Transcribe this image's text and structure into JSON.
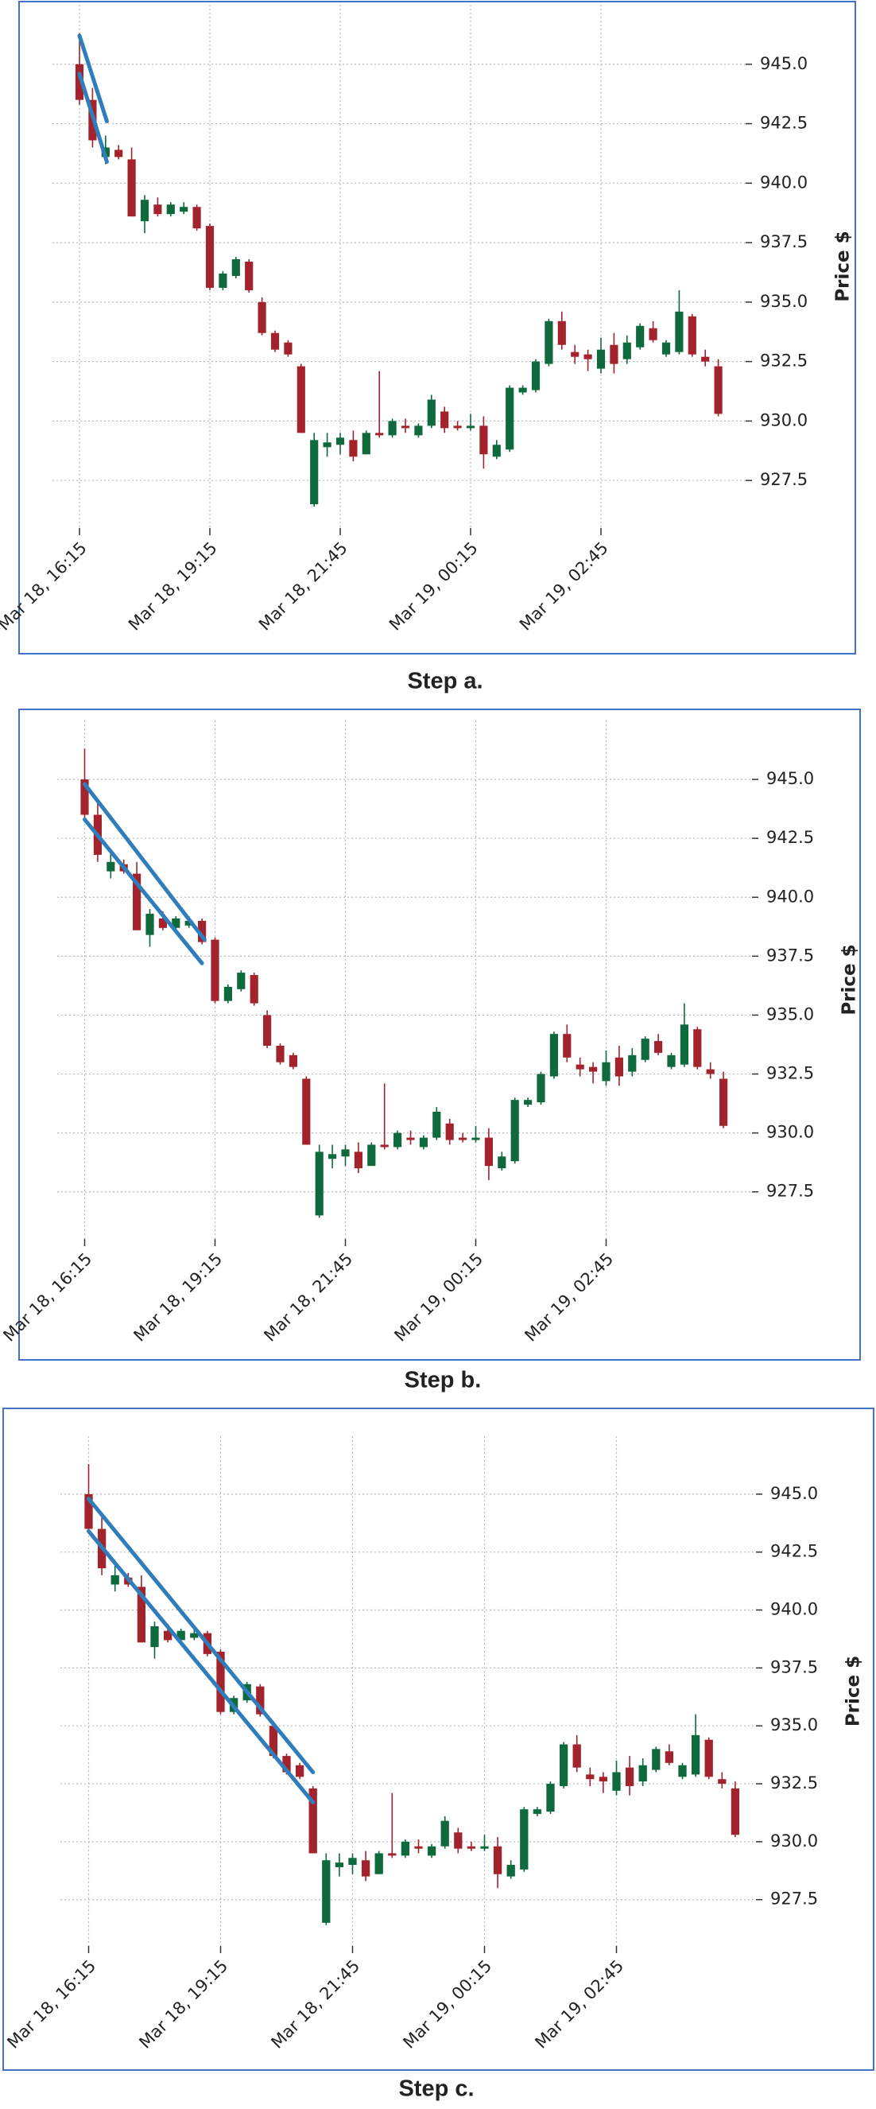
{
  "chart_data": [
    {
      "type": "candlestick",
      "caption": "Step a.",
      "y_label": "Price $",
      "categories": [
        "Mar 18, 16:15",
        null,
        null,
        null,
        null,
        null,
        null,
        null,
        null,
        null,
        "Mar 18, 19:15",
        null,
        null,
        null,
        null,
        null,
        null,
        null,
        null,
        null,
        "Mar 18, 21:45",
        null,
        null,
        null,
        null,
        null,
        null,
        null,
        null,
        null,
        "Mar 19, 00:15",
        null,
        null,
        null,
        null,
        null,
        null,
        null,
        null,
        null,
        "Mar 19, 02:45",
        null,
        null,
        null,
        null,
        null,
        null,
        null,
        null,
        null
      ],
      "open": [
        945,
        943.5,
        941.1,
        941.4,
        941,
        938.4,
        939.1,
        938.7,
        938.8,
        939,
        938.2,
        935.6,
        936.1,
        936.7,
        935,
        933.7,
        933.3,
        932.3,
        926.5,
        928.9,
        929.0,
        929.2,
        928.6,
        929.5,
        929.4,
        929.8,
        929.4,
        929.8,
        930.4,
        929.8,
        929.7,
        929.8,
        928.5,
        928.8,
        931.2,
        931.3,
        932.4,
        934.2,
        932.9,
        932.8,
        932.2,
        933.2,
        932.6,
        933.1,
        933.9,
        932.8,
        932.9,
        934.4,
        932.7,
        932.3
      ],
      "high": [
        946.3,
        944,
        942,
        941.6,
        941.5,
        939.5,
        939.4,
        939.2,
        939.2,
        939.1,
        938.3,
        936.3,
        936.9,
        936.8,
        935.2,
        933.8,
        933.4,
        932.4,
        929.5,
        929.5,
        929.5,
        929.6,
        929.6,
        932.1,
        930.1,
        930.1,
        929.9,
        931.1,
        930.6,
        930.0,
        930.3,
        930.2,
        929.2,
        931.5,
        931.5,
        932.6,
        934.3,
        934.6,
        933.2,
        933.0,
        933.5,
        933.7,
        933.6,
        934.1,
        934.2,
        933.4,
        935.5,
        934.5,
        933.0,
        932.6
      ],
      "low": [
        943.3,
        941.5,
        940.8,
        941.0,
        938.6,
        937.9,
        938.6,
        938.6,
        938.7,
        938.0,
        935.5,
        935.5,
        936.0,
        935.4,
        933.6,
        932.9,
        932.7,
        929.5,
        926.4,
        928.5,
        928.6,
        928.3,
        928.6,
        929.3,
        929.3,
        929.5,
        929.3,
        929.7,
        929.5,
        929.6,
        929.6,
        928.0,
        928.4,
        928.7,
        931.1,
        931.2,
        932.3,
        933.0,
        932.4,
        932.1,
        932.0,
        932.0,
        932.4,
        933.0,
        933.3,
        932.7,
        932.8,
        932.7,
        932.3,
        930.2
      ],
      "close": [
        943.5,
        941.8,
        941.5,
        941.1,
        938.6,
        939.3,
        938.7,
        939.1,
        939.0,
        938.1,
        935.6,
        936.2,
        936.8,
        935.5,
        933.7,
        933.0,
        932.8,
        929.5,
        929.2,
        929.1,
        929.3,
        928.5,
        929.5,
        929.4,
        930.0,
        929.7,
        929.8,
        930.9,
        929.7,
        929.7,
        929.8,
        928.6,
        929.0,
        931.4,
        931.4,
        932.5,
        934.2,
        933.2,
        932.7,
        932.6,
        933.0,
        932.4,
        933.3,
        934.0,
        933.4,
        933.3,
        934.6,
        932.8,
        932.5,
        930.3
      ],
      "colors": {
        "up": "#0e6a3d",
        "down": "#a2232c"
      },
      "trend_line_color": "#2f7dbb",
      "trend_lines": [
        {
          "start": [
            0,
            946.2
          ],
          "end": [
            2.1,
            942.6
          ]
        },
        {
          "start": [
            0,
            944.6
          ],
          "end": [
            2.1,
            940.9
          ]
        }
      ],
      "ylim": [
        925.5,
        947.5
      ],
      "yticks": [
        927.5,
        {
          "value": 930,
          "label": "930.0"
        },
        932.5,
        {
          "value": 935,
          "label": "935.0"
        },
        937.5,
        {
          "value": 940,
          "label": "940.0"
        },
        942.5,
        {
          "value": 945,
          "label": "945.0"
        }
      ],
      "grid": true
    },
    {
      "type": "candlestick",
      "caption": "Step b.",
      "y_label": "Price $",
      "categories": [
        "Mar 18, 16:15",
        null,
        null,
        null,
        null,
        null,
        null,
        null,
        null,
        null,
        "Mar 18, 19:15",
        null,
        null,
        null,
        null,
        null,
        null,
        null,
        null,
        null,
        "Mar 18, 21:45",
        null,
        null,
        null,
        null,
        null,
        null,
        null,
        null,
        null,
        "Mar 19, 00:15",
        null,
        null,
        null,
        null,
        null,
        null,
        null,
        null,
        null,
        "Mar 19, 02:45",
        null,
        null,
        null,
        null,
        null,
        null,
        null,
        null,
        null
      ],
      "open": [
        945,
        943.5,
        941.1,
        941.4,
        941,
        938.4,
        939.1,
        938.7,
        938.8,
        939,
        938.2,
        935.6,
        936.1,
        936.7,
        935,
        933.7,
        933.3,
        932.3,
        926.5,
        928.9,
        929.0,
        929.2,
        928.6,
        929.5,
        929.4,
        929.8,
        929.4,
        929.8,
        930.4,
        929.8,
        929.7,
        929.8,
        928.5,
        928.8,
        931.2,
        931.3,
        932.4,
        934.2,
        932.9,
        932.8,
        932.2,
        933.2,
        932.6,
        933.1,
        933.9,
        932.8,
        932.9,
        934.4,
        932.7,
        932.3
      ],
      "high": [
        946.3,
        944,
        942,
        941.6,
        941.5,
        939.5,
        939.4,
        939.2,
        939.2,
        939.1,
        938.3,
        936.3,
        936.9,
        936.8,
        935.2,
        933.8,
        933.4,
        932.4,
        929.5,
        929.5,
        929.5,
        929.6,
        929.6,
        932.1,
        930.1,
        930.1,
        929.9,
        931.1,
        930.6,
        930.0,
        930.3,
        930.2,
        929.2,
        931.5,
        931.5,
        932.6,
        934.3,
        934.6,
        933.2,
        933.0,
        933.5,
        933.7,
        933.6,
        934.1,
        934.2,
        933.4,
        935.5,
        934.5,
        933.0,
        932.6
      ],
      "low": [
        943.3,
        941.5,
        940.8,
        941.0,
        938.6,
        937.9,
        938.6,
        938.6,
        938.7,
        938.0,
        935.5,
        935.5,
        936.0,
        935.4,
        933.6,
        932.9,
        932.7,
        929.5,
        926.4,
        928.5,
        928.6,
        928.3,
        928.6,
        929.3,
        929.3,
        929.5,
        929.3,
        929.7,
        929.5,
        929.6,
        929.6,
        928.0,
        928.4,
        928.7,
        931.1,
        931.2,
        932.3,
        933.0,
        932.4,
        932.1,
        932.0,
        932.0,
        932.4,
        933.0,
        933.3,
        932.7,
        932.8,
        932.7,
        932.3,
        930.2
      ],
      "close": [
        943.5,
        941.8,
        941.5,
        941.1,
        938.6,
        939.3,
        938.7,
        939.1,
        939.0,
        938.1,
        935.6,
        936.2,
        936.8,
        935.5,
        933.7,
        933.0,
        932.8,
        929.5,
        929.2,
        929.1,
        929.3,
        928.5,
        929.5,
        929.4,
        930.0,
        929.7,
        929.8,
        930.9,
        929.7,
        929.7,
        929.8,
        928.6,
        929.0,
        931.4,
        931.4,
        932.5,
        934.2,
        933.2,
        932.7,
        932.6,
        933.0,
        932.4,
        933.3,
        934.0,
        933.4,
        933.3,
        934.6,
        932.8,
        932.5,
        930.3
      ],
      "colors": {
        "up": "#0e6a3d",
        "down": "#a2232c"
      },
      "trend_line_color": "#2f7dbb",
      "trend_lines": [
        {
          "start": [
            0,
            944.8
          ],
          "end": [
            9.2,
            938.2
          ]
        },
        {
          "start": [
            0,
            943.3
          ],
          "end": [
            9.0,
            937.2
          ]
        }
      ],
      "ylim": [
        925.5,
        947.5
      ],
      "yticks": [
        927.5,
        {
          "value": 930,
          "label": "930.0"
        },
        932.5,
        {
          "value": 935,
          "label": "935.0"
        },
        937.5,
        {
          "value": 940,
          "label": "940.0"
        },
        942.5,
        {
          "value": 945,
          "label": "945.0"
        }
      ],
      "grid": true
    },
    {
      "type": "candlestick",
      "caption": "Step c.",
      "y_label": "Price $",
      "categories": [
        "Mar 18, 16:15",
        null,
        null,
        null,
        null,
        null,
        null,
        null,
        null,
        null,
        "Mar 18, 19:15",
        null,
        null,
        null,
        null,
        null,
        null,
        null,
        null,
        null,
        "Mar 18, 21:45",
        null,
        null,
        null,
        null,
        null,
        null,
        null,
        null,
        null,
        "Mar 19, 00:15",
        null,
        null,
        null,
        null,
        null,
        null,
        null,
        null,
        null,
        "Mar 19, 02:45",
        null,
        null,
        null,
        null,
        null,
        null,
        null,
        null,
        null
      ],
      "open": [
        945,
        943.5,
        941.1,
        941.4,
        941,
        938.4,
        939.1,
        938.7,
        938.8,
        939,
        938.2,
        935.6,
        936.1,
        936.7,
        935,
        933.7,
        933.3,
        932.3,
        926.5,
        928.9,
        929.0,
        929.2,
        928.6,
        929.5,
        929.4,
        929.8,
        929.4,
        929.8,
        930.4,
        929.8,
        929.7,
        929.8,
        928.5,
        928.8,
        931.2,
        931.3,
        932.4,
        934.2,
        932.9,
        932.8,
        932.2,
        933.2,
        932.6,
        933.1,
        933.9,
        932.8,
        932.9,
        934.4,
        932.7,
        932.3
      ],
      "high": [
        946.3,
        944,
        942,
        941.6,
        941.5,
        939.5,
        939.4,
        939.2,
        939.2,
        939.1,
        938.3,
        936.3,
        936.9,
        936.8,
        935.2,
        933.8,
        933.4,
        932.4,
        929.5,
        929.5,
        929.5,
        929.6,
        929.6,
        932.1,
        930.1,
        930.1,
        929.9,
        931.1,
        930.6,
        930.0,
        930.3,
        930.2,
        929.2,
        931.5,
        931.5,
        932.6,
        934.3,
        934.6,
        933.2,
        933.0,
        933.5,
        933.7,
        933.6,
        934.1,
        934.2,
        933.4,
        935.5,
        934.5,
        933.0,
        932.6
      ],
      "low": [
        943.3,
        941.5,
        940.8,
        941.0,
        938.6,
        937.9,
        938.6,
        938.6,
        938.7,
        938.0,
        935.5,
        935.5,
        936.0,
        935.4,
        933.6,
        932.9,
        932.7,
        929.5,
        926.4,
        928.5,
        928.6,
        928.3,
        928.6,
        929.3,
        929.3,
        929.5,
        929.3,
        929.7,
        929.5,
        929.6,
        929.6,
        928.0,
        928.4,
        928.7,
        931.1,
        931.2,
        932.3,
        933.0,
        932.4,
        932.1,
        932.0,
        932.0,
        932.4,
        933.0,
        933.3,
        932.7,
        932.8,
        932.7,
        932.3,
        930.2
      ],
      "close": [
        943.5,
        941.8,
        941.5,
        941.1,
        938.6,
        939.3,
        938.7,
        939.1,
        939.0,
        938.1,
        935.6,
        936.2,
        936.8,
        935.5,
        933.7,
        933.0,
        932.8,
        929.5,
        929.2,
        929.1,
        929.3,
        928.5,
        929.5,
        929.4,
        930.0,
        929.7,
        929.8,
        930.9,
        929.7,
        929.7,
        929.8,
        928.6,
        929.0,
        931.4,
        931.4,
        932.5,
        934.2,
        933.2,
        932.7,
        932.6,
        933.0,
        932.4,
        933.3,
        934.0,
        933.4,
        933.3,
        934.6,
        932.8,
        932.5,
        930.3
      ],
      "colors": {
        "up": "#0e6a3d",
        "down": "#a2232c"
      },
      "trend_line_color": "#2f7dbb",
      "trend_lines": [
        {
          "start": [
            0,
            944.8
          ],
          "end": [
            17,
            933.0
          ]
        },
        {
          "start": [
            0,
            943.4
          ],
          "end": [
            17,
            931.7
          ]
        }
      ],
      "ylim": [
        925.5,
        947.5
      ],
      "yticks": [
        927.5,
        {
          "value": 930,
          "label": "930.0"
        },
        932.5,
        {
          "value": 935,
          "label": "935.0"
        },
        937.5,
        {
          "value": 940,
          "label": "940.0"
        },
        942.5,
        {
          "value": 945,
          "label": "945.0"
        }
      ],
      "grid": true
    }
  ]
}
